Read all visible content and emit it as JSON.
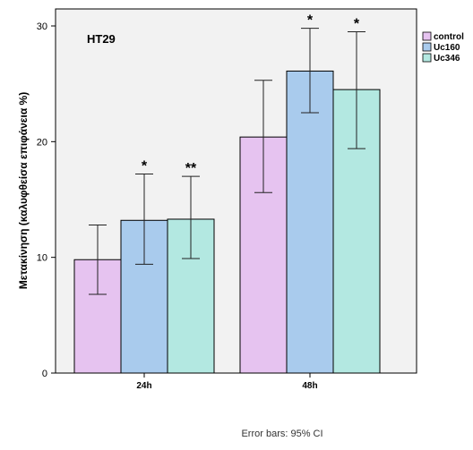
{
  "chart_data": {
    "type": "bar",
    "title": "HT29",
    "ylabel": "Μετακίνηση (καλυφθείσα επιφάνεια %)",
    "xlabel": "",
    "categories": [
      "24h",
      "48h"
    ],
    "ylim": [
      0,
      30
    ],
    "yticks": [
      0,
      10,
      20,
      30
    ],
    "grid": false,
    "legend_position": "top-right",
    "series": [
      {
        "name": "control",
        "color": "#e6c3f0",
        "values": [
          9.8,
          20.4
        ],
        "ci_low": [
          6.8,
          15.6
        ],
        "ci_high": [
          12.8,
          25.3
        ],
        "annotations": [
          "",
          ""
        ]
      },
      {
        "name": "Uc160",
        "color": "#a9cbed",
        "values": [
          13.2,
          26.1
        ],
        "ci_low": [
          9.4,
          22.5
        ],
        "ci_high": [
          17.2,
          29.8
        ],
        "annotations": [
          "*",
          "*"
        ]
      },
      {
        "name": "Uc346",
        "color": "#b3e8e1",
        "values": [
          13.3,
          24.5
        ],
        "ci_low": [
          9.9,
          19.4
        ],
        "ci_high": [
          17.0,
          29.5
        ],
        "annotations": [
          "**",
          "*"
        ]
      }
    ],
    "footnote": "Error bars: 95% CI"
  }
}
